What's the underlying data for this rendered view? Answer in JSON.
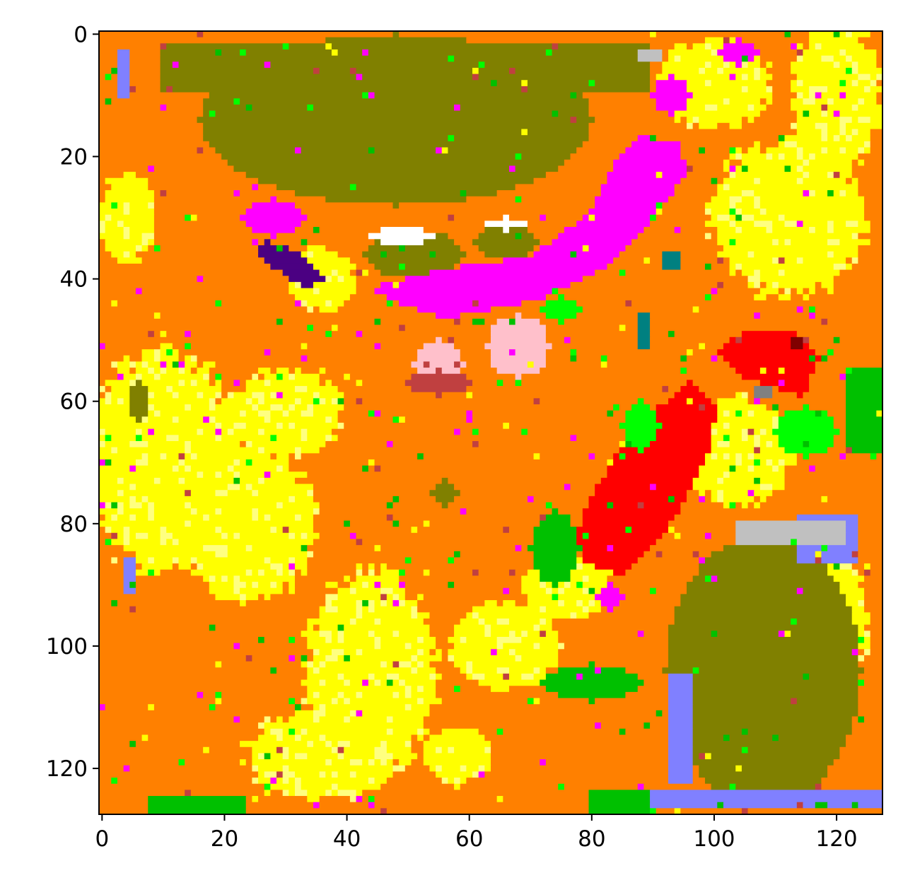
{
  "chart_data": {
    "type": "heatmap",
    "title": "",
    "xlabel": "",
    "ylabel": "",
    "grid_size": [
      128,
      128
    ],
    "xlim": [
      -0.5,
      127.5
    ],
    "ylim": [
      127.5,
      -0.5
    ],
    "y_axis_inverted": true,
    "grid": false,
    "colorbar": false,
    "x_ticks": [
      "0",
      "20",
      "40",
      "60",
      "80",
      "100",
      "120"
    ],
    "y_ticks": [
      "0",
      "20",
      "40",
      "60",
      "80",
      "100",
      "120"
    ],
    "palette": {
      "background": "#ff8000",
      "olive": "#808000",
      "yellow": "#ffff00",
      "light_yellow": "#ffff80",
      "green": "#00c000",
      "lime": "#00ff00",
      "magenta": "#ff00ff",
      "indigo": "#4b0082",
      "red": "#ff0000",
      "pink": "#ffc0cb",
      "brick": "#c04040",
      "periwinkle": "#8080ff",
      "silver": "#c0c0c0",
      "teal": "#008080",
      "white": "#ffffff",
      "maroon": "#800000",
      "gray": "#808080"
    },
    "regions": [
      {
        "label": "olive",
        "shape": "rect",
        "cells": [
          10,
          2,
          80,
          8
        ]
      },
      {
        "label": "olive",
        "shape": "ellipse",
        "cells": [
          48,
          14,
          32,
          14
        ]
      },
      {
        "label": "olive",
        "shape": "ellipse",
        "cells": [
          51,
          36,
          8,
          4
        ]
      },
      {
        "label": "olive",
        "shape": "ellipse",
        "cells": [
          66,
          34,
          5,
          3
        ]
      },
      {
        "label": "olive",
        "shape": "ellipse",
        "cells": [
          108,
          104,
          16,
          22
        ]
      },
      {
        "label": "olive",
        "shape": "ellipse",
        "cells": [
          6,
          60,
          1.5,
          3
        ]
      },
      {
        "label": "olive",
        "shape": "ellipse",
        "cells": [
          56,
          75,
          2,
          2
        ]
      },
      {
        "label": "white",
        "shape": "ellipse",
        "cells": [
          49,
          33,
          5,
          1.5
        ]
      },
      {
        "label": "white",
        "shape": "ellipse",
        "cells": [
          66,
          31,
          3,
          1
        ]
      },
      {
        "label": "periwinkle",
        "shape": "rect",
        "cells": [
          90,
          124,
          38,
          3
        ]
      },
      {
        "label": "periwinkle",
        "shape": "rect",
        "cells": [
          93,
          105,
          4,
          18
        ]
      },
      {
        "label": "periwinkle",
        "shape": "rect",
        "cells": [
          114,
          79,
          10,
          8
        ]
      },
      {
        "label": "periwinkle",
        "shape": "rect",
        "cells": [
          3,
          3,
          2,
          8
        ]
      },
      {
        "label": "periwinkle",
        "shape": "rect",
        "cells": [
          4,
          86,
          2,
          6
        ]
      },
      {
        "label": "silver",
        "shape": "rect",
        "cells": [
          104,
          80,
          18,
          4
        ]
      },
      {
        "label": "silver",
        "shape": "rect",
        "cells": [
          88,
          3,
          4,
          2
        ]
      },
      {
        "label": "magenta",
        "shape": "poly",
        "cells": [
          [
            48,
            44
          ],
          [
            56,
            47
          ],
          [
            72,
            44
          ],
          [
            84,
            38
          ],
          [
            92,
            29
          ],
          [
            96,
            23
          ],
          [
            95,
            18
          ],
          [
            88,
            17
          ],
          [
            84,
            22
          ],
          [
            80,
            30
          ],
          [
            70,
            37
          ],
          [
            56,
            39
          ],
          [
            44,
            42
          ]
        ]
      },
      {
        "label": "magenta",
        "shape": "ellipse",
        "cells": [
          28,
          30,
          5,
          3
        ]
      },
      {
        "label": "magenta",
        "shape": "ellipse",
        "cells": [
          93,
          10,
          3,
          3
        ]
      },
      {
        "label": "magenta",
        "shape": "ellipse",
        "cells": [
          104,
          3,
          3,
          2
        ]
      },
      {
        "label": "magenta",
        "shape": "ellipse",
        "cells": [
          83,
          92,
          2,
          2
        ]
      },
      {
        "label": "indigo",
        "shape": "poly",
        "cells": [
          [
            27,
            34
          ],
          [
            33,
            36
          ],
          [
            37,
            41
          ],
          [
            34,
            42
          ],
          [
            29,
            39
          ],
          [
            26,
            37
          ]
        ]
      },
      {
        "label": "red",
        "shape": "poly",
        "cells": [
          [
            79,
            87
          ],
          [
            86,
            89
          ],
          [
            92,
            83
          ],
          [
            96,
            76
          ],
          [
            100,
            68
          ],
          [
            101,
            61
          ],
          [
            97,
            57
          ],
          [
            92,
            61
          ],
          [
            86,
            67
          ],
          [
            81,
            75
          ],
          [
            78,
            82
          ]
        ]
      },
      {
        "label": "red",
        "shape": "poly",
        "cells": [
          [
            101,
            52
          ],
          [
            106,
            49
          ],
          [
            114,
            49
          ],
          [
            118,
            53
          ],
          [
            115,
            60
          ],
          [
            110,
            58
          ],
          [
            104,
            56
          ]
        ]
      },
      {
        "label": "pink",
        "shape": "ellipse",
        "cells": [
          55,
          54,
          4,
          4
        ]
      },
      {
        "label": "pink",
        "shape": "ellipse",
        "cells": [
          68,
          51,
          5,
          5
        ]
      },
      {
        "label": "brick",
        "shape": "ellipse",
        "cells": [
          55,
          57,
          5,
          2
        ]
      },
      {
        "label": "lime",
        "shape": "ellipse",
        "cells": [
          88,
          64,
          3,
          4
        ]
      },
      {
        "label": "lime",
        "shape": "ellipse",
        "cells": [
          115,
          65,
          5,
          4
        ]
      },
      {
        "label": "lime",
        "shape": "ellipse",
        "cells": [
          75,
          45,
          3,
          2
        ]
      },
      {
        "label": "green",
        "shape": "rect",
        "cells": [
          122,
          55,
          6,
          14
        ]
      },
      {
        "label": "green",
        "shape": "ellipse",
        "cells": [
          80,
          106,
          8,
          3
        ]
      },
      {
        "label": "green",
        "shape": "ellipse",
        "cells": [
          74,
          84,
          4,
          6
        ]
      },
      {
        "label": "green",
        "shape": "rect",
        "cells": [
          80,
          124,
          10,
          4
        ]
      },
      {
        "label": "green",
        "shape": "rect",
        "cells": [
          8,
          125,
          16,
          3
        ]
      },
      {
        "label": "teal",
        "shape": "rect",
        "cells": [
          92,
          36,
          3,
          3
        ]
      },
      {
        "label": "teal",
        "shape": "rect",
        "cells": [
          88,
          46,
          2,
          6
        ]
      },
      {
        "label": "maroon",
        "shape": "rect",
        "cells": [
          113,
          50,
          2,
          2
        ]
      },
      {
        "label": "gray",
        "shape": "rect",
        "cells": [
          107,
          58,
          3,
          2
        ]
      }
    ]
  }
}
